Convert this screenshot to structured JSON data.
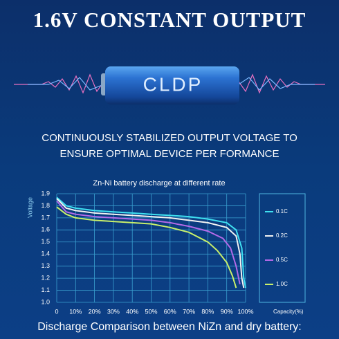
{
  "header": {
    "title": "1.6V CONSTANT OUTPUT",
    "brand": "CLDP",
    "subtitle": [
      "CONTINUOUSLY STABILIZED OUTPUT VOLTAGE TO",
      "ENSURE OPTIMAL DEVICE PER FORMANCE"
    ]
  },
  "chart_data": {
    "type": "line",
    "title": "Zn-Ni battery discharge at different rate",
    "y_label": "Voltage",
    "x_label": "Capacity(%)",
    "xlim": [
      0,
      100
    ],
    "xticks": [
      0,
      {
        "value": 10,
        "label": "10%"
      },
      {
        "value": 20,
        "label": "20%"
      },
      {
        "value": 30,
        "label": "30%"
      },
      {
        "value": 40,
        "label": "40%"
      },
      {
        "value": 50,
        "label": "50%"
      },
      {
        "value": 60,
        "label": "60%"
      },
      {
        "value": 70,
        "label": "70%"
      },
      {
        "value": 80,
        "label": "80%"
      },
      {
        "value": 90,
        "label": "90%"
      },
      {
        "value": 100,
        "label": "100%"
      }
    ],
    "ylim": [
      1.0,
      1.9
    ],
    "yticks": [
      {
        "value": 1.0,
        "label": "1.0"
      },
      1.1,
      1.2,
      1.3,
      1.4,
      1.5,
      1.6,
      1.7,
      1.8,
      1.9
    ],
    "grid": true,
    "series": [
      {
        "name": "0.1C",
        "color": "#3fe0f0",
        "x": [
          0,
          5,
          10,
          20,
          30,
          40,
          50,
          60,
          70,
          80,
          90,
          95,
          98,
          99,
          100
        ],
        "values": [
          1.87,
          1.8,
          1.78,
          1.76,
          1.75,
          1.74,
          1.73,
          1.72,
          1.71,
          1.69,
          1.66,
          1.6,
          1.45,
          1.2,
          1.12
        ]
      },
      {
        "name": "0.2C",
        "color": "#f2f2f2",
        "x": [
          0,
          5,
          10,
          20,
          30,
          40,
          50,
          60,
          70,
          80,
          90,
          95,
          97,
          98,
          99
        ],
        "values": [
          1.86,
          1.78,
          1.76,
          1.74,
          1.73,
          1.72,
          1.71,
          1.7,
          1.68,
          1.66,
          1.62,
          1.55,
          1.4,
          1.2,
          1.12
        ]
      },
      {
        "name": "0.5C",
        "color": "#b46ae8",
        "x": [
          0,
          5,
          10,
          20,
          30,
          40,
          50,
          60,
          70,
          80,
          88,
          92,
          95,
          97
        ],
        "values": [
          1.84,
          1.75,
          1.73,
          1.71,
          1.7,
          1.69,
          1.68,
          1.66,
          1.63,
          1.59,
          1.53,
          1.45,
          1.3,
          1.15
        ]
      },
      {
        "name": "1.0C",
        "color": "#c8ef6a",
        "x": [
          0,
          5,
          10,
          20,
          30,
          40,
          50,
          60,
          70,
          80,
          85,
          90,
          93,
          95
        ],
        "values": [
          1.79,
          1.73,
          1.7,
          1.68,
          1.67,
          1.66,
          1.65,
          1.62,
          1.58,
          1.5,
          1.43,
          1.33,
          1.22,
          1.12
        ]
      }
    ]
  },
  "footer": {
    "caption": "Discharge Comparison between NiZn and dry battery:"
  }
}
